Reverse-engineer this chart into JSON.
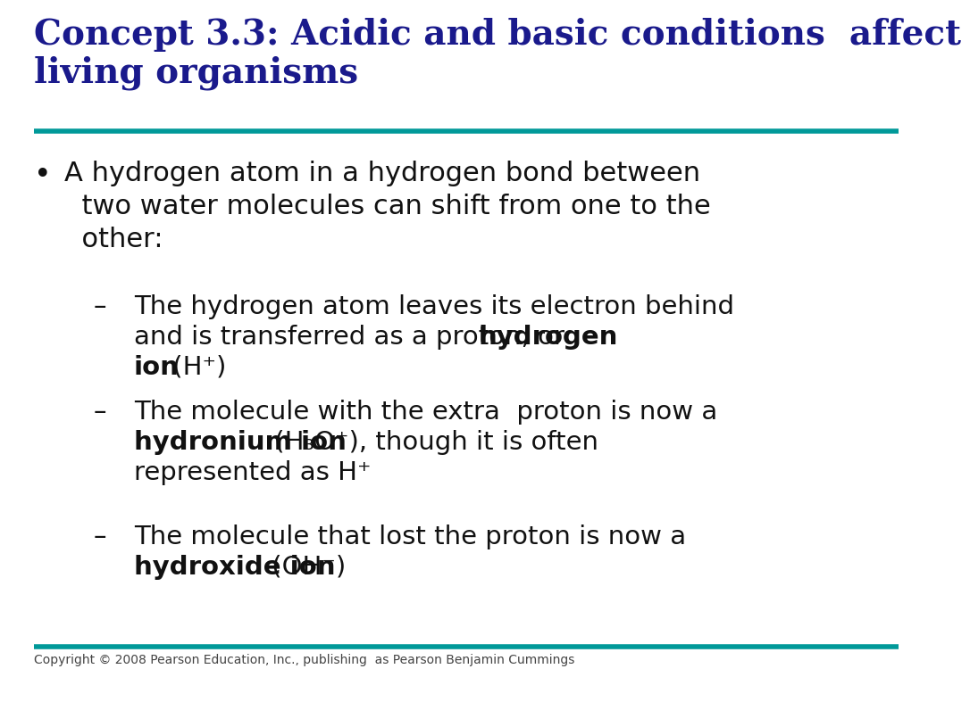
{
  "title_line1": "Concept 3.3: Acidic and basic conditions  affect",
  "title_line2": "living organisms",
  "title_color": "#1a1a8c",
  "title_fontsize": 28,
  "teal_line_color": "#009999",
  "bg_color": "#ffffff",
  "body_fontsize": 22,
  "sub_fontsize": 21,
  "copyright": "Copyright © 2008 Pearson Education, Inc., publishing  as Pearson Benjamin Cummings",
  "copyright_fontsize": 10,
  "body_color": "#111111"
}
